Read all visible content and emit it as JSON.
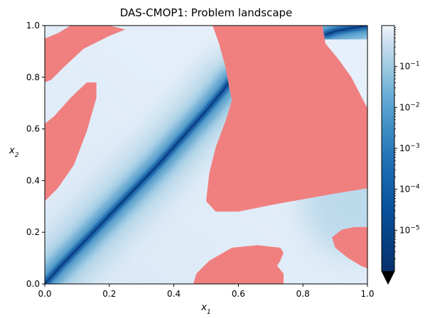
{
  "chart_data": {
    "type": "heatmap",
    "title": "DAS-CMOP1: Problem landscape",
    "xlabel": "x",
    "xlabel_sub": "1",
    "ylabel": "x",
    "ylabel_sub": "2",
    "xlim": [
      0.0,
      1.0
    ],
    "ylim": [
      0.0,
      1.0
    ],
    "x_ticks": [
      "0.0",
      "0.2",
      "0.4",
      "0.6",
      "0.8",
      "1.0"
    ],
    "y_ticks": [
      "0.0",
      "0.2",
      "0.4",
      "0.6",
      "0.8",
      "1.0"
    ],
    "grid": false,
    "colorbar": {
      "scale": "log",
      "colormap": "Blues_r",
      "range": [
        1e-06,
        1.0
      ],
      "extend": "min",
      "ticks": [
        {
          "value": 1e-05,
          "base": "10",
          "exp": "−5"
        },
        {
          "value": 0.0001,
          "base": "10",
          "exp": "−4"
        },
        {
          "value": 0.001,
          "base": "10",
          "exp": "−3"
        },
        {
          "value": 0.01,
          "base": "10",
          "exp": "−2"
        },
        {
          "value": 0.1,
          "base": "10",
          "exp": "−1"
        }
      ]
    },
    "infeasible_color": "#f08080",
    "optimal_front_color": "#08306b",
    "optimal_front": [
      [
        0.0,
        0.0
      ],
      [
        0.05,
        0.07
      ],
      [
        0.1,
        0.135
      ],
      [
        0.15,
        0.2
      ],
      [
        0.2,
        0.265
      ],
      [
        0.25,
        0.33
      ],
      [
        0.3,
        0.395
      ],
      [
        0.35,
        0.46
      ],
      [
        0.4,
        0.53
      ],
      [
        0.45,
        0.6
      ],
      [
        0.5,
        0.67
      ],
      [
        0.55,
        0.745
      ],
      [
        0.58,
        0.795
      ]
    ],
    "optimal_front_upper": [
      [
        0.87,
        0.965
      ],
      [
        0.9,
        0.978
      ],
      [
        0.95,
        0.99
      ],
      [
        1.0,
        1.0
      ]
    ],
    "infeasible_regions": [
      [
        [
          0.0,
          0.95
        ],
        [
          0.04,
          0.97
        ],
        [
          0.08,
          1.0
        ],
        [
          0.2,
          1.0
        ],
        [
          0.25,
          0.985
        ],
        [
          0.2,
          0.96
        ],
        [
          0.12,
          0.91
        ],
        [
          0.06,
          0.84
        ],
        [
          0.02,
          0.79
        ],
        [
          0.0,
          0.78
        ]
      ],
      [
        [
          0.0,
          0.32
        ],
        [
          0.04,
          0.37
        ],
        [
          0.09,
          0.46
        ],
        [
          0.13,
          0.59
        ],
        [
          0.16,
          0.72
        ],
        [
          0.16,
          0.78
        ],
        [
          0.13,
          0.78
        ],
        [
          0.08,
          0.72
        ],
        [
          0.03,
          0.65
        ],
        [
          0.0,
          0.62
        ]
      ],
      [
        [
          0.52,
          1.0
        ],
        [
          0.86,
          1.0
        ],
        [
          0.87,
          0.93
        ],
        [
          0.91,
          0.87
        ],
        [
          0.95,
          0.8
        ],
        [
          1.0,
          0.68
        ],
        [
          1.0,
          0.37
        ],
        [
          0.9,
          0.35
        ],
        [
          0.72,
          0.31
        ],
        [
          0.6,
          0.28
        ],
        [
          0.53,
          0.28
        ],
        [
          0.5,
          0.32
        ],
        [
          0.51,
          0.43
        ],
        [
          0.53,
          0.53
        ],
        [
          0.56,
          0.63
        ],
        [
          0.58,
          0.71
        ],
        [
          0.57,
          0.77
        ],
        [
          0.56,
          0.84
        ],
        [
          0.54,
          0.93
        ]
      ],
      [
        [
          0.46,
          0.0
        ],
        [
          0.74,
          0.0
        ],
        [
          0.74,
          0.04
        ],
        [
          0.72,
          0.07
        ],
        [
          0.73,
          0.09
        ],
        [
          0.74,
          0.12
        ],
        [
          0.73,
          0.14
        ],
        [
          0.66,
          0.15
        ],
        [
          0.58,
          0.14
        ],
        [
          0.51,
          0.09
        ],
        [
          0.47,
          0.04
        ]
      ],
      [
        [
          1.0,
          0.22
        ],
        [
          0.96,
          0.22
        ],
        [
          0.92,
          0.21
        ],
        [
          0.89,
          0.18
        ],
        [
          0.9,
          0.14
        ],
        [
          0.94,
          0.1
        ],
        [
          0.98,
          0.07
        ],
        [
          1.0,
          0.06
        ]
      ]
    ]
  }
}
